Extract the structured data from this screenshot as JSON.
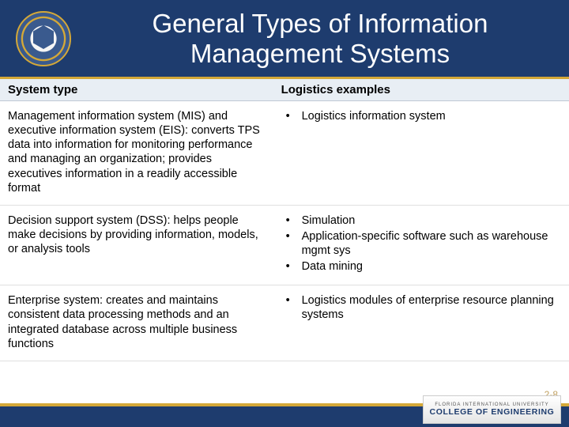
{
  "colors": {
    "header_bg": "#1e3c6e",
    "accent": "#d4a838",
    "table_header_bg": "#e8eef4",
    "text": "#000000",
    "title_text": "#ffffff"
  },
  "title": "General Types of Information Management Systems",
  "table": {
    "headers": {
      "col1": "System type",
      "col2": "Logistics examples"
    },
    "rows": [
      {
        "system_type": "Management information system (MIS) and executive information system (EIS): converts TPS data into information for monitoring performance and managing an organization; provides executives information in a readily accessible format",
        "examples": [
          "Logistics information system"
        ]
      },
      {
        "system_type": "Decision support system (DSS): helps people make decisions by providing information, models, or analysis tools",
        "examples": [
          "Simulation",
          "Application-specific software such as warehouse mgmt sys",
          "Data mining"
        ]
      },
      {
        "system_type": "Enterprise system: creates and maintains consistent data processing methods and an integrated database across multiple business functions",
        "examples": [
          "Logistics modules of enterprise resource planning systems"
        ]
      }
    ]
  },
  "footer": {
    "org_line1": "FLORIDA INTERNATIONAL UNIVERSITY",
    "org_line2": "COLLEGE OF ENGINEERING",
    "slide_number": "2-8"
  }
}
